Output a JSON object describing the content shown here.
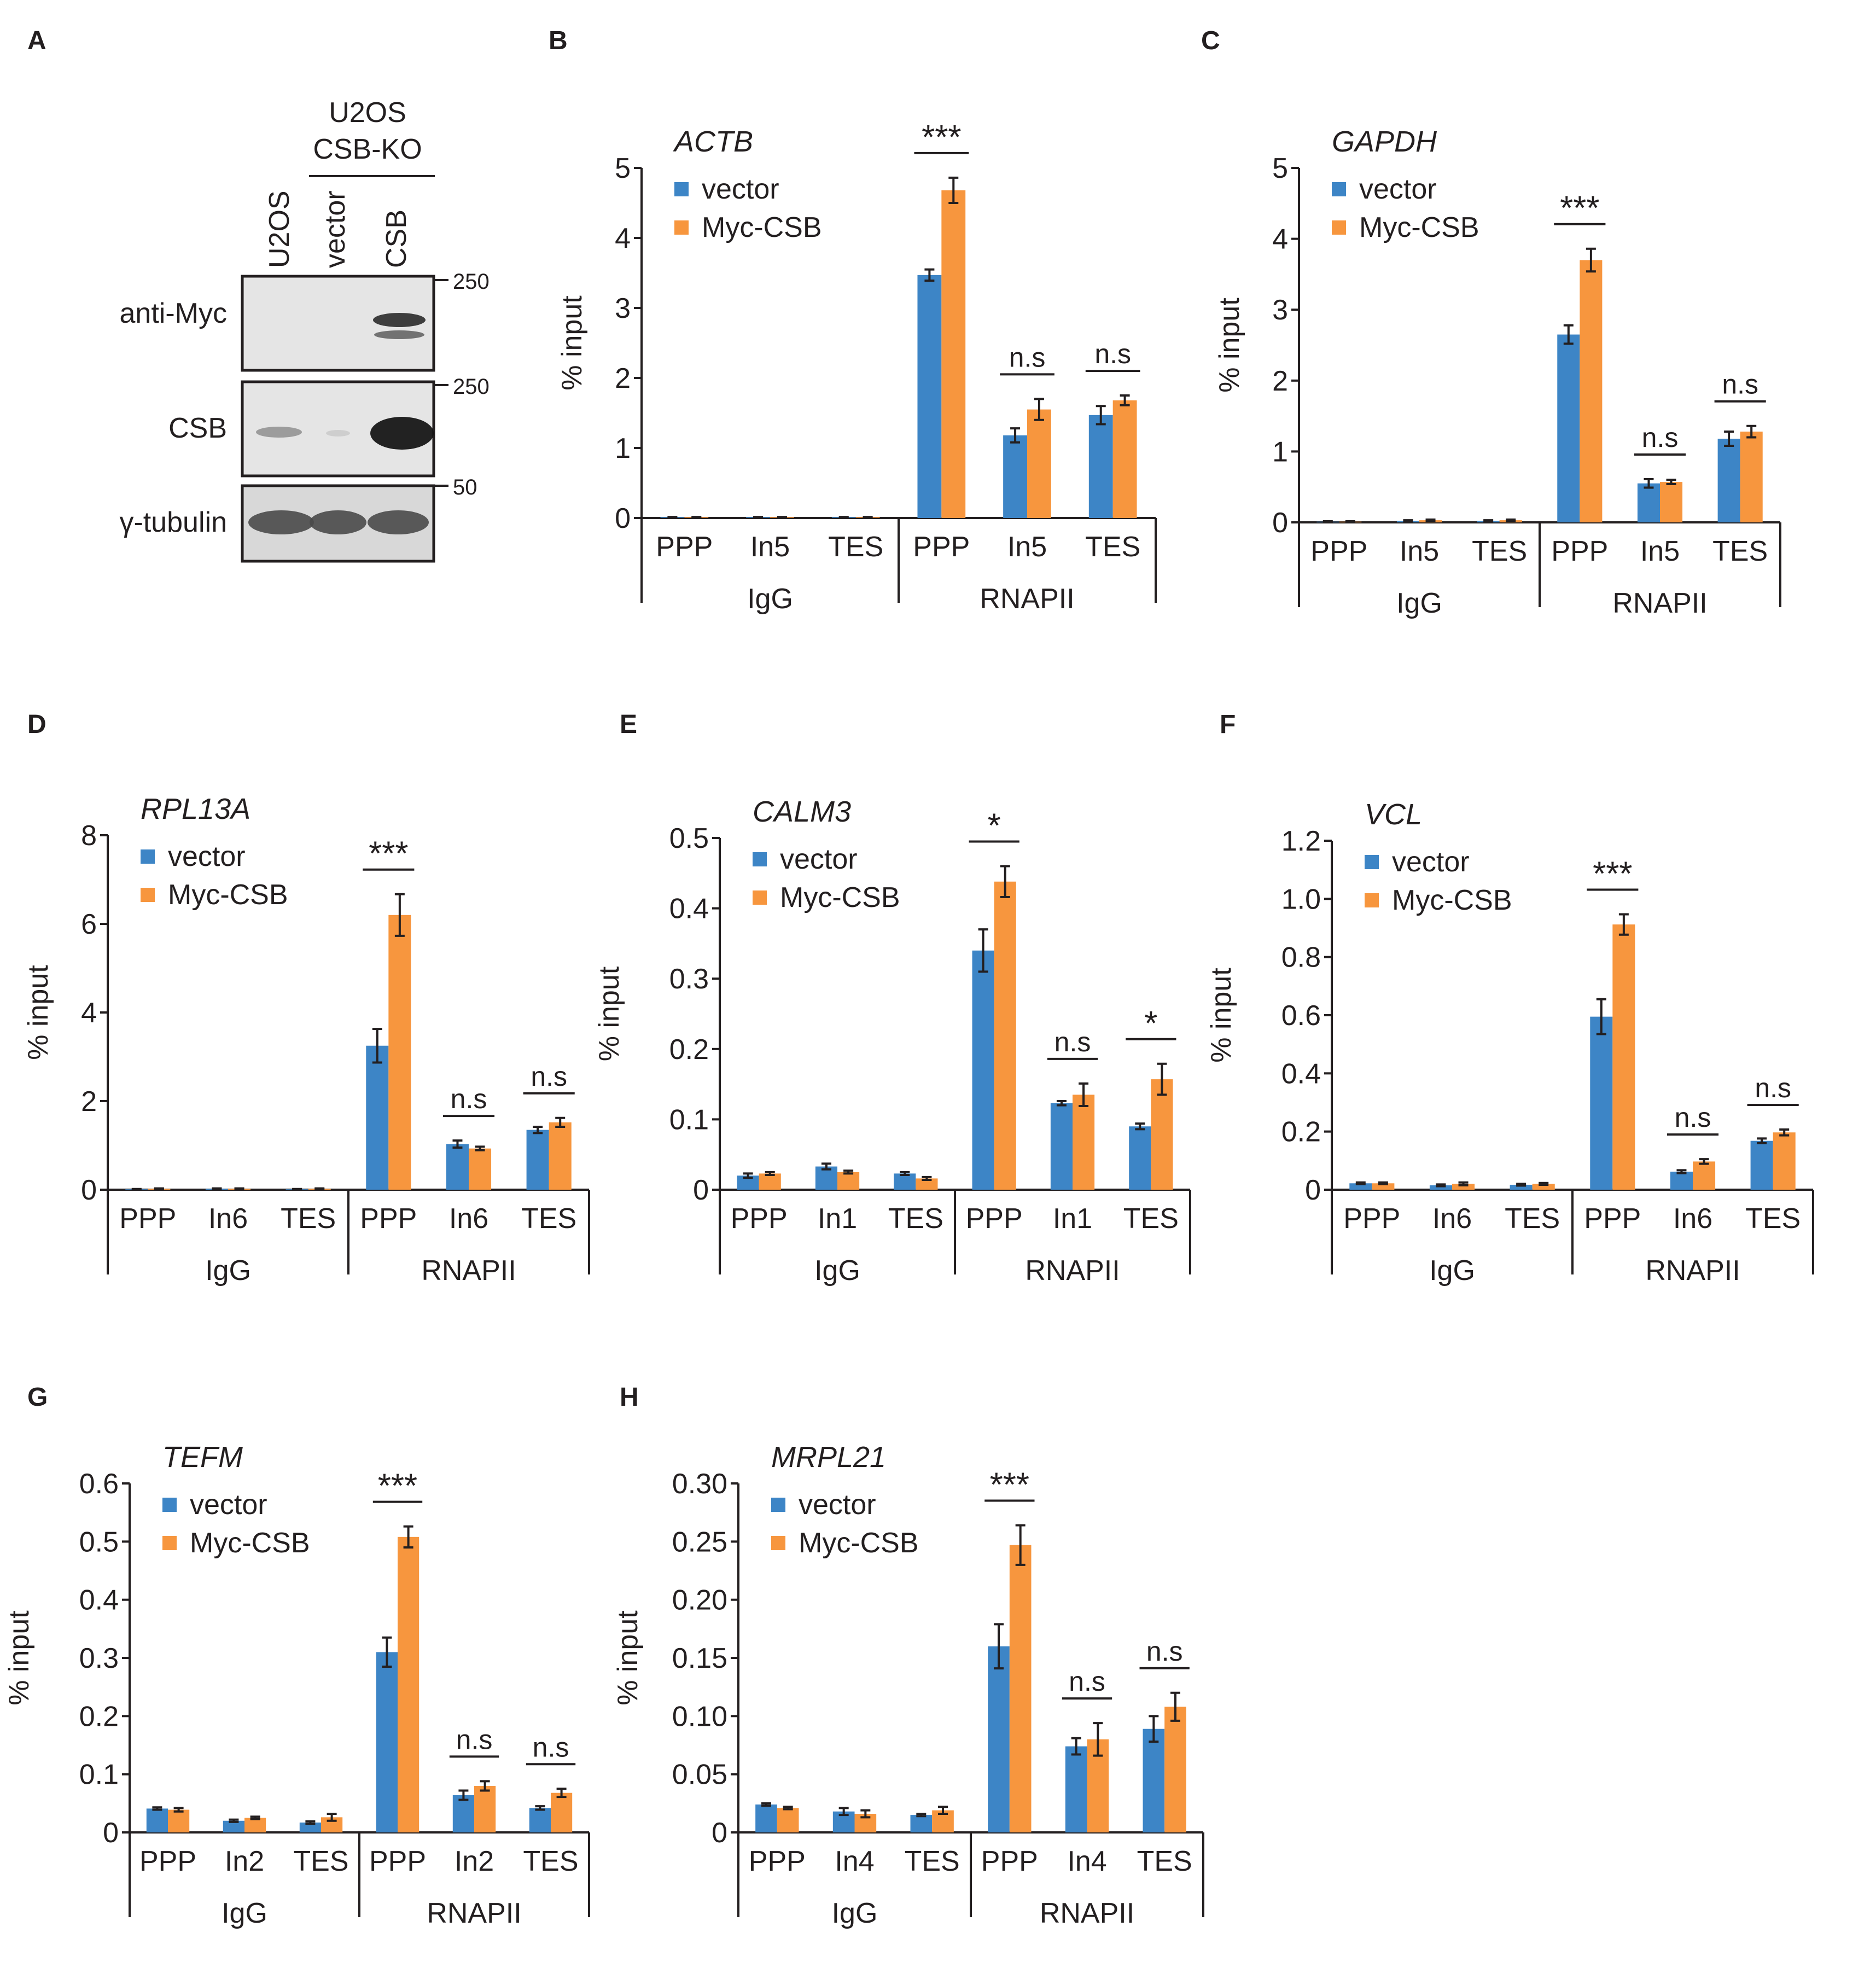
{
  "colors": {
    "vector": "#3d85c6",
    "myc": "#f7963e",
    "ink": "#231f20",
    "blot_bg": "#e5e5e5"
  },
  "blot": {
    "panel_letter": "A",
    "header_line1": "U2OS",
    "header_line2": "CSB-KO",
    "lanes": [
      "U2OS",
      "vector",
      "CSB"
    ],
    "rows": [
      {
        "label": "anti-Myc",
        "marker": "250"
      },
      {
        "label": "CSB",
        "marker": "250"
      },
      {
        "label": "γ-tubulin",
        "marker": "50"
      }
    ]
  },
  "chart_data": [
    {
      "panel": "B",
      "type": "bar",
      "title": "ACTB",
      "ylabel": "% input",
      "yticks": [
        "0",
        "1",
        "2",
        "3",
        "4",
        "5"
      ],
      "ylim": [
        0,
        5
      ],
      "legend": [
        "vector",
        "Myc-CSB"
      ],
      "groups": [
        "IgG",
        "RNAPII"
      ],
      "categories": [
        "PPP",
        "In5",
        "TES",
        "PPP",
        "In5",
        "TES"
      ],
      "series": [
        {
          "name": "vector",
          "values": [
            0.01,
            0.01,
            0.01,
            3.47,
            1.18,
            1.47
          ],
          "errors": [
            0.005,
            0.005,
            0.005,
            0.08,
            0.1,
            0.13
          ]
        },
        {
          "name": "Myc-CSB",
          "values": [
            0.01,
            0.01,
            0.01,
            4.68,
            1.55,
            1.68
          ],
          "errors": [
            0.005,
            0.005,
            0.005,
            0.18,
            0.15,
            0.07
          ]
        }
      ],
      "annotations": [
        {
          "category": 3,
          "text": "***"
        },
        {
          "category": 4,
          "text": "n.s"
        },
        {
          "category": 5,
          "text": "n.s"
        }
      ]
    },
    {
      "panel": "C",
      "type": "bar",
      "title": "GAPDH",
      "ylabel": "% input",
      "yticks": [
        "0",
        "1",
        "2",
        "3",
        "4",
        "5"
      ],
      "ylim": [
        0,
        5
      ],
      "legend": [
        "vector",
        "Myc-CSB"
      ],
      "groups": [
        "IgG",
        "RNAPII"
      ],
      "categories": [
        "PPP",
        "In5",
        "TES",
        "PPP",
        "In5",
        "TES"
      ],
      "series": [
        {
          "name": "vector",
          "values": [
            0.01,
            0.02,
            0.02,
            2.65,
            0.55,
            1.18
          ],
          "errors": [
            0.005,
            0.01,
            0.01,
            0.13,
            0.06,
            0.1
          ]
        },
        {
          "name": "Myc-CSB",
          "values": [
            0.01,
            0.03,
            0.03,
            3.7,
            0.57,
            1.28
          ],
          "errors": [
            0.005,
            0.01,
            0.01,
            0.16,
            0.03,
            0.08
          ]
        }
      ],
      "annotations": [
        {
          "category": 3,
          "text": "***"
        },
        {
          "category": 4,
          "text": "n.s"
        },
        {
          "category": 5,
          "text": "n.s"
        }
      ]
    },
    {
      "panel": "D",
      "type": "bar",
      "title": "RPL13A",
      "ylabel": "% input",
      "yticks": [
        "0",
        "2",
        "4",
        "6",
        "8"
      ],
      "ylim": [
        0,
        8
      ],
      "legend": [
        "vector",
        "Myc-CSB"
      ],
      "groups": [
        "IgG",
        "RNAPII"
      ],
      "categories": [
        "PPP",
        "In6",
        "TES",
        "PPP",
        "In6",
        "TES"
      ],
      "series": [
        {
          "name": "vector",
          "values": [
            0.01,
            0.02,
            0.01,
            3.25,
            1.03,
            1.35
          ],
          "errors": [
            0.005,
            0.01,
            0.005,
            0.38,
            0.08,
            0.07
          ]
        },
        {
          "name": "Myc-CSB",
          "values": [
            0.02,
            0.02,
            0.02,
            6.2,
            0.93,
            1.52
          ],
          "errors": [
            0.01,
            0.01,
            0.01,
            0.47,
            0.04,
            0.1
          ]
        }
      ],
      "annotations": [
        {
          "category": 3,
          "text": "***"
        },
        {
          "category": 4,
          "text": "n.s"
        },
        {
          "category": 5,
          "text": "n.s"
        }
      ]
    },
    {
      "panel": "E",
      "type": "bar",
      "title": "CALM3",
      "ylabel": "% input",
      "yticks": [
        "0",
        "0.1",
        "0.2",
        "0.3",
        "0.4",
        "0.5"
      ],
      "ylim": [
        0,
        0.5
      ],
      "legend": [
        "vector",
        "Myc-CSB"
      ],
      "groups": [
        "IgG",
        "RNAPII"
      ],
      "categories": [
        "PPP",
        "In1",
        "TES",
        "PPP",
        "In1",
        "TES"
      ],
      "series": [
        {
          "name": "vector",
          "values": [
            0.02,
            0.033,
            0.023,
            0.34,
            0.123,
            0.09
          ],
          "errors": [
            0.003,
            0.004,
            0.002,
            0.03,
            0.003,
            0.004
          ]
        },
        {
          "name": "Myc-CSB",
          "values": [
            0.023,
            0.025,
            0.016,
            0.438,
            0.135,
            0.157
          ],
          "errors": [
            0.002,
            0.002,
            0.002,
            0.022,
            0.016,
            0.022
          ]
        }
      ],
      "annotations": [
        {
          "category": 3,
          "text": "*"
        },
        {
          "category": 4,
          "text": "n.s"
        },
        {
          "category": 5,
          "text": "*"
        }
      ]
    },
    {
      "panel": "F",
      "type": "bar",
      "title": "VCL",
      "ylabel": "% input",
      "yticks": [
        "0",
        "0.2",
        "0.4",
        "0.6",
        "0.8",
        "1.0",
        "1.2"
      ],
      "ylim": [
        0,
        1.2
      ],
      "legend": [
        "vector",
        "Myc-CSB"
      ],
      "groups": [
        "IgG",
        "RNAPII"
      ],
      "categories": [
        "PPP",
        "In6",
        "TES",
        "PPP",
        "In6",
        "TES"
      ],
      "series": [
        {
          "name": "vector",
          "values": [
            0.022,
            0.015,
            0.017,
            0.595,
            0.062,
            0.168
          ],
          "errors": [
            0.003,
            0.003,
            0.003,
            0.06,
            0.005,
            0.008
          ]
        },
        {
          "name": "Myc-CSB",
          "values": [
            0.022,
            0.02,
            0.02,
            0.912,
            0.097,
            0.197
          ],
          "errors": [
            0.003,
            0.005,
            0.003,
            0.035,
            0.008,
            0.01
          ]
        }
      ],
      "annotations": [
        {
          "category": 3,
          "text": "***"
        },
        {
          "category": 4,
          "text": "n.s"
        },
        {
          "category": 5,
          "text": "n.s"
        }
      ]
    },
    {
      "panel": "G",
      "type": "bar",
      "title": "TEFM",
      "ylabel": "% input",
      "yticks": [
        "0",
        "0.1",
        "0.2",
        "0.3",
        "0.4",
        "0.5",
        "0.6"
      ],
      "ylim": [
        0,
        0.6
      ],
      "legend": [
        "vector",
        "Myc-CSB"
      ],
      "groups": [
        "IgG",
        "RNAPII"
      ],
      "categories": [
        "PPP",
        "In2",
        "TES",
        "PPP",
        "In2",
        "TES"
      ],
      "series": [
        {
          "name": "vector",
          "values": [
            0.041,
            0.02,
            0.017,
            0.31,
            0.064,
            0.042
          ],
          "errors": [
            0.002,
            0.002,
            0.002,
            0.025,
            0.008,
            0.003
          ]
        },
        {
          "name": "Myc-CSB",
          "values": [
            0.039,
            0.025,
            0.026,
            0.508,
            0.08,
            0.068
          ],
          "errors": [
            0.003,
            0.002,
            0.006,
            0.018,
            0.008,
            0.007
          ]
        }
      ],
      "annotations": [
        {
          "category": 3,
          "text": "***"
        },
        {
          "category": 4,
          "text": "n.s"
        },
        {
          "category": 5,
          "text": "n.s"
        }
      ]
    },
    {
      "panel": "H",
      "type": "bar",
      "title": "MRPL21",
      "ylabel": "% input",
      "yticks": [
        "0",
        "0.05",
        "0.10",
        "0.15",
        "0.20",
        "0.25",
        "0.30"
      ],
      "ylim": [
        0,
        0.3
      ],
      "legend": [
        "vector",
        "Myc-CSB"
      ],
      "groups": [
        "IgG",
        "RNAPII"
      ],
      "categories": [
        "PPP",
        "In4",
        "TES",
        "PPP",
        "In4",
        "TES"
      ],
      "series": [
        {
          "name": "vector",
          "values": [
            0.024,
            0.018,
            0.015,
            0.16,
            0.074,
            0.089
          ],
          "errors": [
            0.001,
            0.003,
            0.001,
            0.019,
            0.007,
            0.011
          ]
        },
        {
          "name": "Myc-CSB",
          "values": [
            0.021,
            0.016,
            0.019,
            0.247,
            0.08,
            0.108
          ],
          "errors": [
            0.001,
            0.003,
            0.003,
            0.017,
            0.014,
            0.012
          ]
        }
      ],
      "annotations": [
        {
          "category": 3,
          "text": "***"
        },
        {
          "category": 4,
          "text": "n.s"
        },
        {
          "category": 5,
          "text": "n.s"
        }
      ]
    }
  ]
}
